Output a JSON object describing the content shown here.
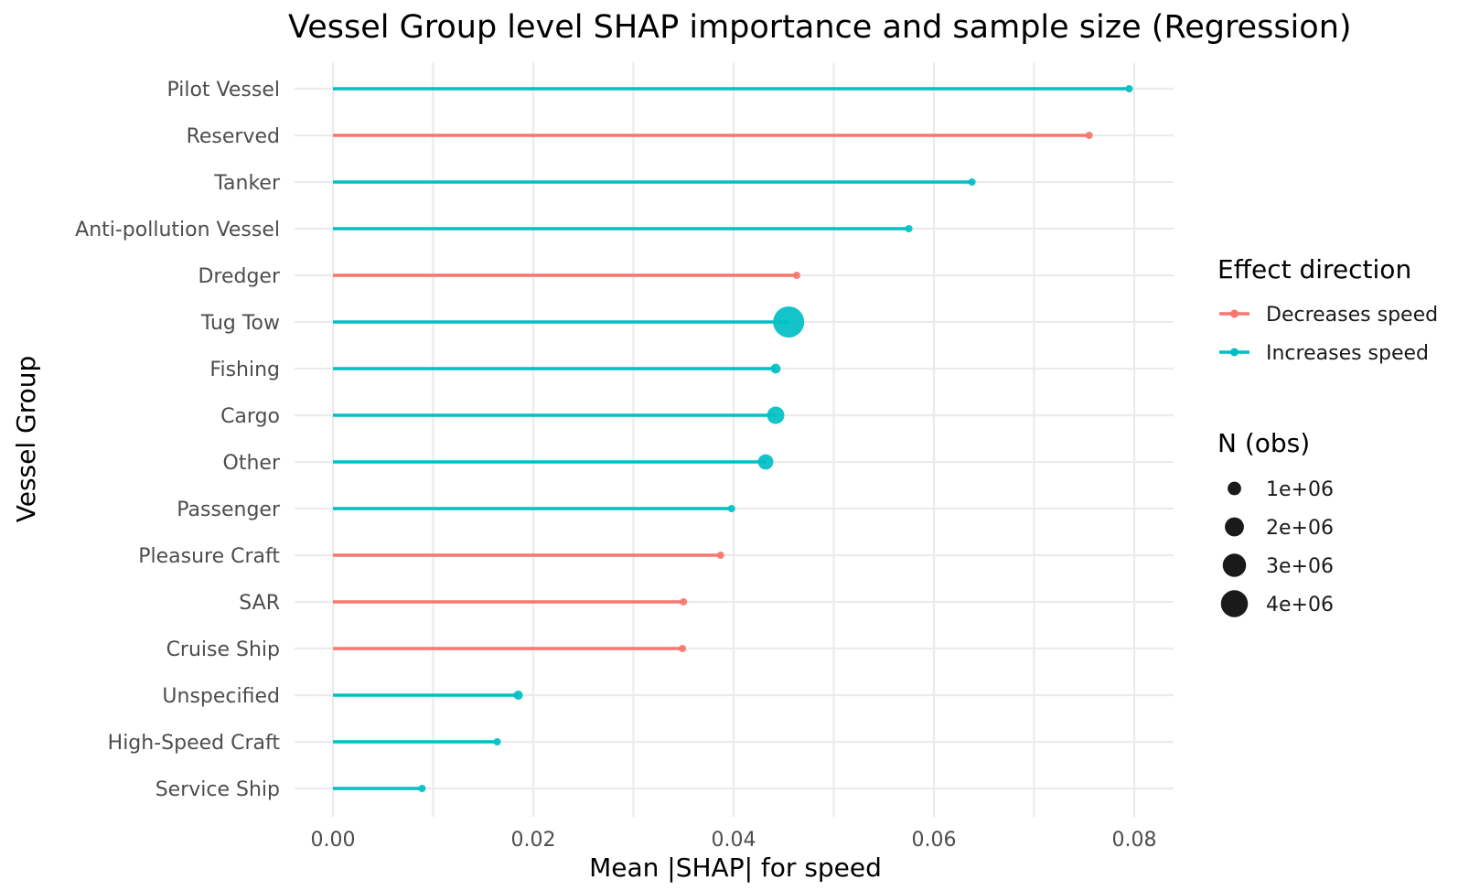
{
  "chart_data": {
    "type": "lollipop",
    "title": "Vessel Group level SHAP importance and sample size (Regression)",
    "xlabel": "Mean |SHAP| for speed",
    "ylabel": "Vessel Group",
    "xlim": [
      -0.002,
      0.0833
    ],
    "x_ticks": [
      0,
      0.02,
      0.04,
      0.06,
      0.08
    ],
    "x_tick_labels": [
      "0.00",
      "0.02",
      "0.04",
      "0.06",
      "0.08"
    ],
    "grid": true,
    "categories": [
      "Pilot Vessel",
      "Reserved",
      "Tanker",
      "Anti-pollution Vessel",
      "Dredger",
      "Tug Tow",
      "Fishing",
      "Cargo",
      "Other",
      "Passenger",
      "Pleasure Craft",
      "SAR",
      "Cruise Ship",
      "Unspecified",
      "High-Speed Craft",
      "Service Ship"
    ],
    "values": [
      0.0795,
      0.0755,
      0.0638,
      0.0575,
      0.0463,
      0.0455,
      0.0442,
      0.0442,
      0.0432,
      0.0398,
      0.0387,
      0.035,
      0.0349,
      0.0185,
      0.0164,
      0.0089
    ],
    "directions": [
      "Increases speed",
      "Decreases speed",
      "Increases speed",
      "Increases speed",
      "Decreases speed",
      "Increases speed",
      "Increases speed",
      "Increases speed",
      "Increases speed",
      "Increases speed",
      "Decreases speed",
      "Decreases speed",
      "Decreases speed",
      "Increases speed",
      "Increases speed",
      "Increases speed"
    ],
    "n_obs": [
      5000,
      15000,
      90000,
      8000,
      30000,
      4500000,
      450000,
      1400000,
      1100000,
      40000,
      150000,
      60000,
      40000,
      400000,
      250000,
      20000
    ],
    "legend": {
      "color": {
        "title": "Effect direction",
        "placement": "right",
        "entries": [
          {
            "label": "Decreases speed",
            "color": "#F8766D"
          },
          {
            "label": "Increases speed",
            "color": "#00BFC4"
          }
        ]
      },
      "size": {
        "title": "N (obs)",
        "placement": "right",
        "entries": [
          {
            "label": "1e+06",
            "value": 1000000
          },
          {
            "label": "2e+06",
            "value": 2000000
          },
          {
            "label": "3e+06",
            "value": 3000000
          },
          {
            "label": "4e+06",
            "value": 4000000
          }
        ]
      }
    },
    "colors": {
      "Decreases speed": "#F8766D",
      "Increases speed": "#00BFC4",
      "size_legend_point": "#1a1a1a"
    }
  }
}
